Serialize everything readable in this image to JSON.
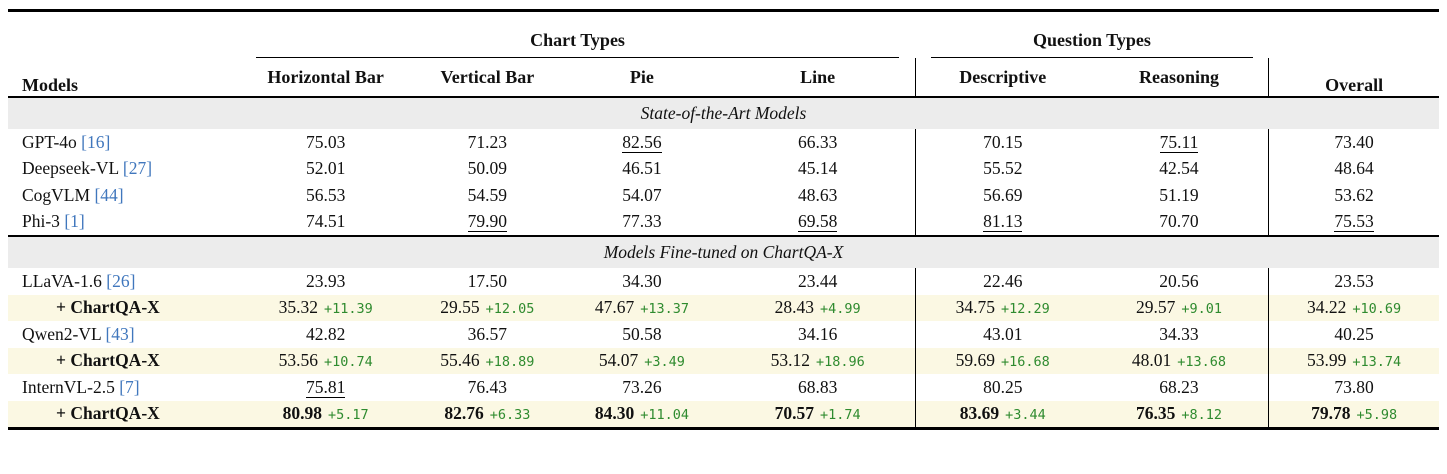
{
  "header": {
    "models": "Models",
    "chart_types": "Chart Types",
    "question_types": "Question Types",
    "overall": "Overall",
    "chart_columns": [
      "Horizontal Bar",
      "Vertical Bar",
      "Pie",
      "Line"
    ],
    "question_columns": [
      "Descriptive",
      "Reasoning"
    ]
  },
  "colors": {
    "delta_green": "#2f8b2f",
    "citation_blue": "#4077bd",
    "highlight_row_bg": "#fbf8e3",
    "section_band_bg": "#ececec"
  },
  "sections": [
    {
      "title": "State-of-the-Art Models",
      "rows": [
        {
          "model": "GPT-4o",
          "cite": "[16]",
          "highlight": false,
          "bold_label": false,
          "values": [
            "75.03",
            "71.23",
            "82.56",
            "66.33",
            "70.15",
            "75.11",
            "73.40"
          ],
          "underline": [
            false,
            false,
            true,
            false,
            false,
            true,
            false
          ],
          "bold": [
            false,
            false,
            false,
            false,
            false,
            false,
            false
          ],
          "deltas": [
            null,
            null,
            null,
            null,
            null,
            null,
            null
          ]
        },
        {
          "model": "Deepseek-VL",
          "cite": "[27]",
          "highlight": false,
          "bold_label": false,
          "values": [
            "52.01",
            "50.09",
            "46.51",
            "45.14",
            "55.52",
            "42.54",
            "48.64"
          ],
          "underline": [
            false,
            false,
            false,
            false,
            false,
            false,
            false
          ],
          "bold": [
            false,
            false,
            false,
            false,
            false,
            false,
            false
          ],
          "deltas": [
            null,
            null,
            null,
            null,
            null,
            null,
            null
          ]
        },
        {
          "model": "CogVLM",
          "cite": "[44]",
          "highlight": false,
          "bold_label": false,
          "values": [
            "56.53",
            "54.59",
            "54.07",
            "48.63",
            "56.69",
            "51.19",
            "53.62"
          ],
          "underline": [
            false,
            false,
            false,
            false,
            false,
            false,
            false
          ],
          "bold": [
            false,
            false,
            false,
            false,
            false,
            false,
            false
          ],
          "deltas": [
            null,
            null,
            null,
            null,
            null,
            null,
            null
          ]
        },
        {
          "model": "Phi-3",
          "cite": "[1]",
          "highlight": false,
          "bold_label": false,
          "values": [
            "74.51",
            "79.90",
            "77.33",
            "69.58",
            "81.13",
            "70.70",
            "75.53"
          ],
          "underline": [
            false,
            true,
            false,
            true,
            true,
            false,
            true
          ],
          "bold": [
            false,
            false,
            false,
            false,
            false,
            false,
            false
          ],
          "deltas": [
            null,
            null,
            null,
            null,
            null,
            null,
            null
          ]
        }
      ]
    },
    {
      "title": "Models Fine-tuned on ChartQA-X",
      "rows": [
        {
          "model": "LLaVA-1.6",
          "cite": "[26]",
          "highlight": false,
          "bold_label": false,
          "values": [
            "23.93",
            "17.50",
            "34.30",
            "23.44",
            "22.46",
            "20.56",
            "23.53"
          ],
          "underline": [
            false,
            false,
            false,
            false,
            false,
            false,
            false
          ],
          "bold": [
            false,
            false,
            false,
            false,
            false,
            false,
            false
          ],
          "deltas": [
            null,
            null,
            null,
            null,
            null,
            null,
            null
          ]
        },
        {
          "model": "+ ChartQA-X",
          "cite": null,
          "highlight": true,
          "bold_label": true,
          "values": [
            "35.32",
            "29.55",
            "47.67",
            "28.43",
            "34.75",
            "29.57",
            "34.22"
          ],
          "underline": [
            false,
            false,
            false,
            false,
            false,
            false,
            false
          ],
          "bold": [
            false,
            false,
            false,
            false,
            false,
            false,
            false
          ],
          "deltas": [
            "+11.39",
            "+12.05",
            "+13.37",
            "+4.99",
            "+12.29",
            "+9.01",
            "+10.69"
          ]
        },
        {
          "model": "Qwen2-VL",
          "cite": "[43]",
          "highlight": false,
          "bold_label": false,
          "values": [
            "42.82",
            "36.57",
            "50.58",
            "34.16",
            "43.01",
            "34.33",
            "40.25"
          ],
          "underline": [
            false,
            false,
            false,
            false,
            false,
            false,
            false
          ],
          "bold": [
            false,
            false,
            false,
            false,
            false,
            false,
            false
          ],
          "deltas": [
            null,
            null,
            null,
            null,
            null,
            null,
            null
          ]
        },
        {
          "model": "+ ChartQA-X",
          "cite": null,
          "highlight": true,
          "bold_label": true,
          "values": [
            "53.56",
            "55.46",
            "54.07",
            "53.12",
            "59.69",
            "48.01",
            "53.99"
          ],
          "underline": [
            false,
            false,
            false,
            false,
            false,
            false,
            false
          ],
          "bold": [
            false,
            false,
            false,
            false,
            false,
            false,
            false
          ],
          "deltas": [
            "+10.74",
            "+18.89",
            "+3.49",
            "+18.96",
            "+16.68",
            "+13.68",
            "+13.74"
          ]
        },
        {
          "model": "InternVL-2.5",
          "cite": "[7]",
          "highlight": false,
          "bold_label": false,
          "values": [
            "75.81",
            "76.43",
            "73.26",
            "68.83",
            "80.25",
            "68.23",
            "73.80"
          ],
          "underline": [
            true,
            false,
            false,
            false,
            false,
            false,
            false
          ],
          "bold": [
            false,
            false,
            false,
            false,
            false,
            false,
            false
          ],
          "deltas": [
            null,
            null,
            null,
            null,
            null,
            null,
            null
          ]
        },
        {
          "model": "+ ChartQA-X",
          "cite": null,
          "highlight": true,
          "bold_label": true,
          "values": [
            "80.98",
            "82.76",
            "84.30",
            "70.57",
            "83.69",
            "76.35",
            "79.78"
          ],
          "underline": [
            false,
            false,
            false,
            false,
            false,
            false,
            false
          ],
          "bold": [
            true,
            true,
            true,
            true,
            true,
            true,
            true
          ],
          "deltas": [
            "+5.17",
            "+6.33",
            "+11.04",
            "+1.74",
            "+3.44",
            "+8.12",
            "+5.98"
          ]
        }
      ]
    }
  ]
}
